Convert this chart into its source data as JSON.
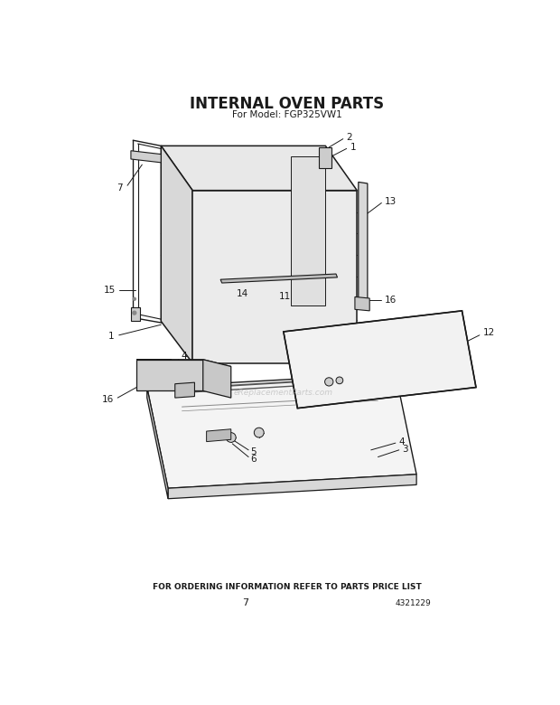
{
  "title": "INTERNAL OVEN PARTS",
  "subtitle": "For Model: FGP325VW1",
  "footer_line1": "FOR ORDERING INFORMATION REFER TO PARTS PRICE LIST",
  "footer_page": "7",
  "footer_code": "4321229",
  "bg_color": "#ffffff",
  "line_color": "#1a1a1a",
  "title_fontsize": 12,
  "subtitle_fontsize": 7.5,
  "footer_fontsize": 6.5,
  "label_fontsize": 7.5,
  "watermark": "eReplacementParts.com"
}
